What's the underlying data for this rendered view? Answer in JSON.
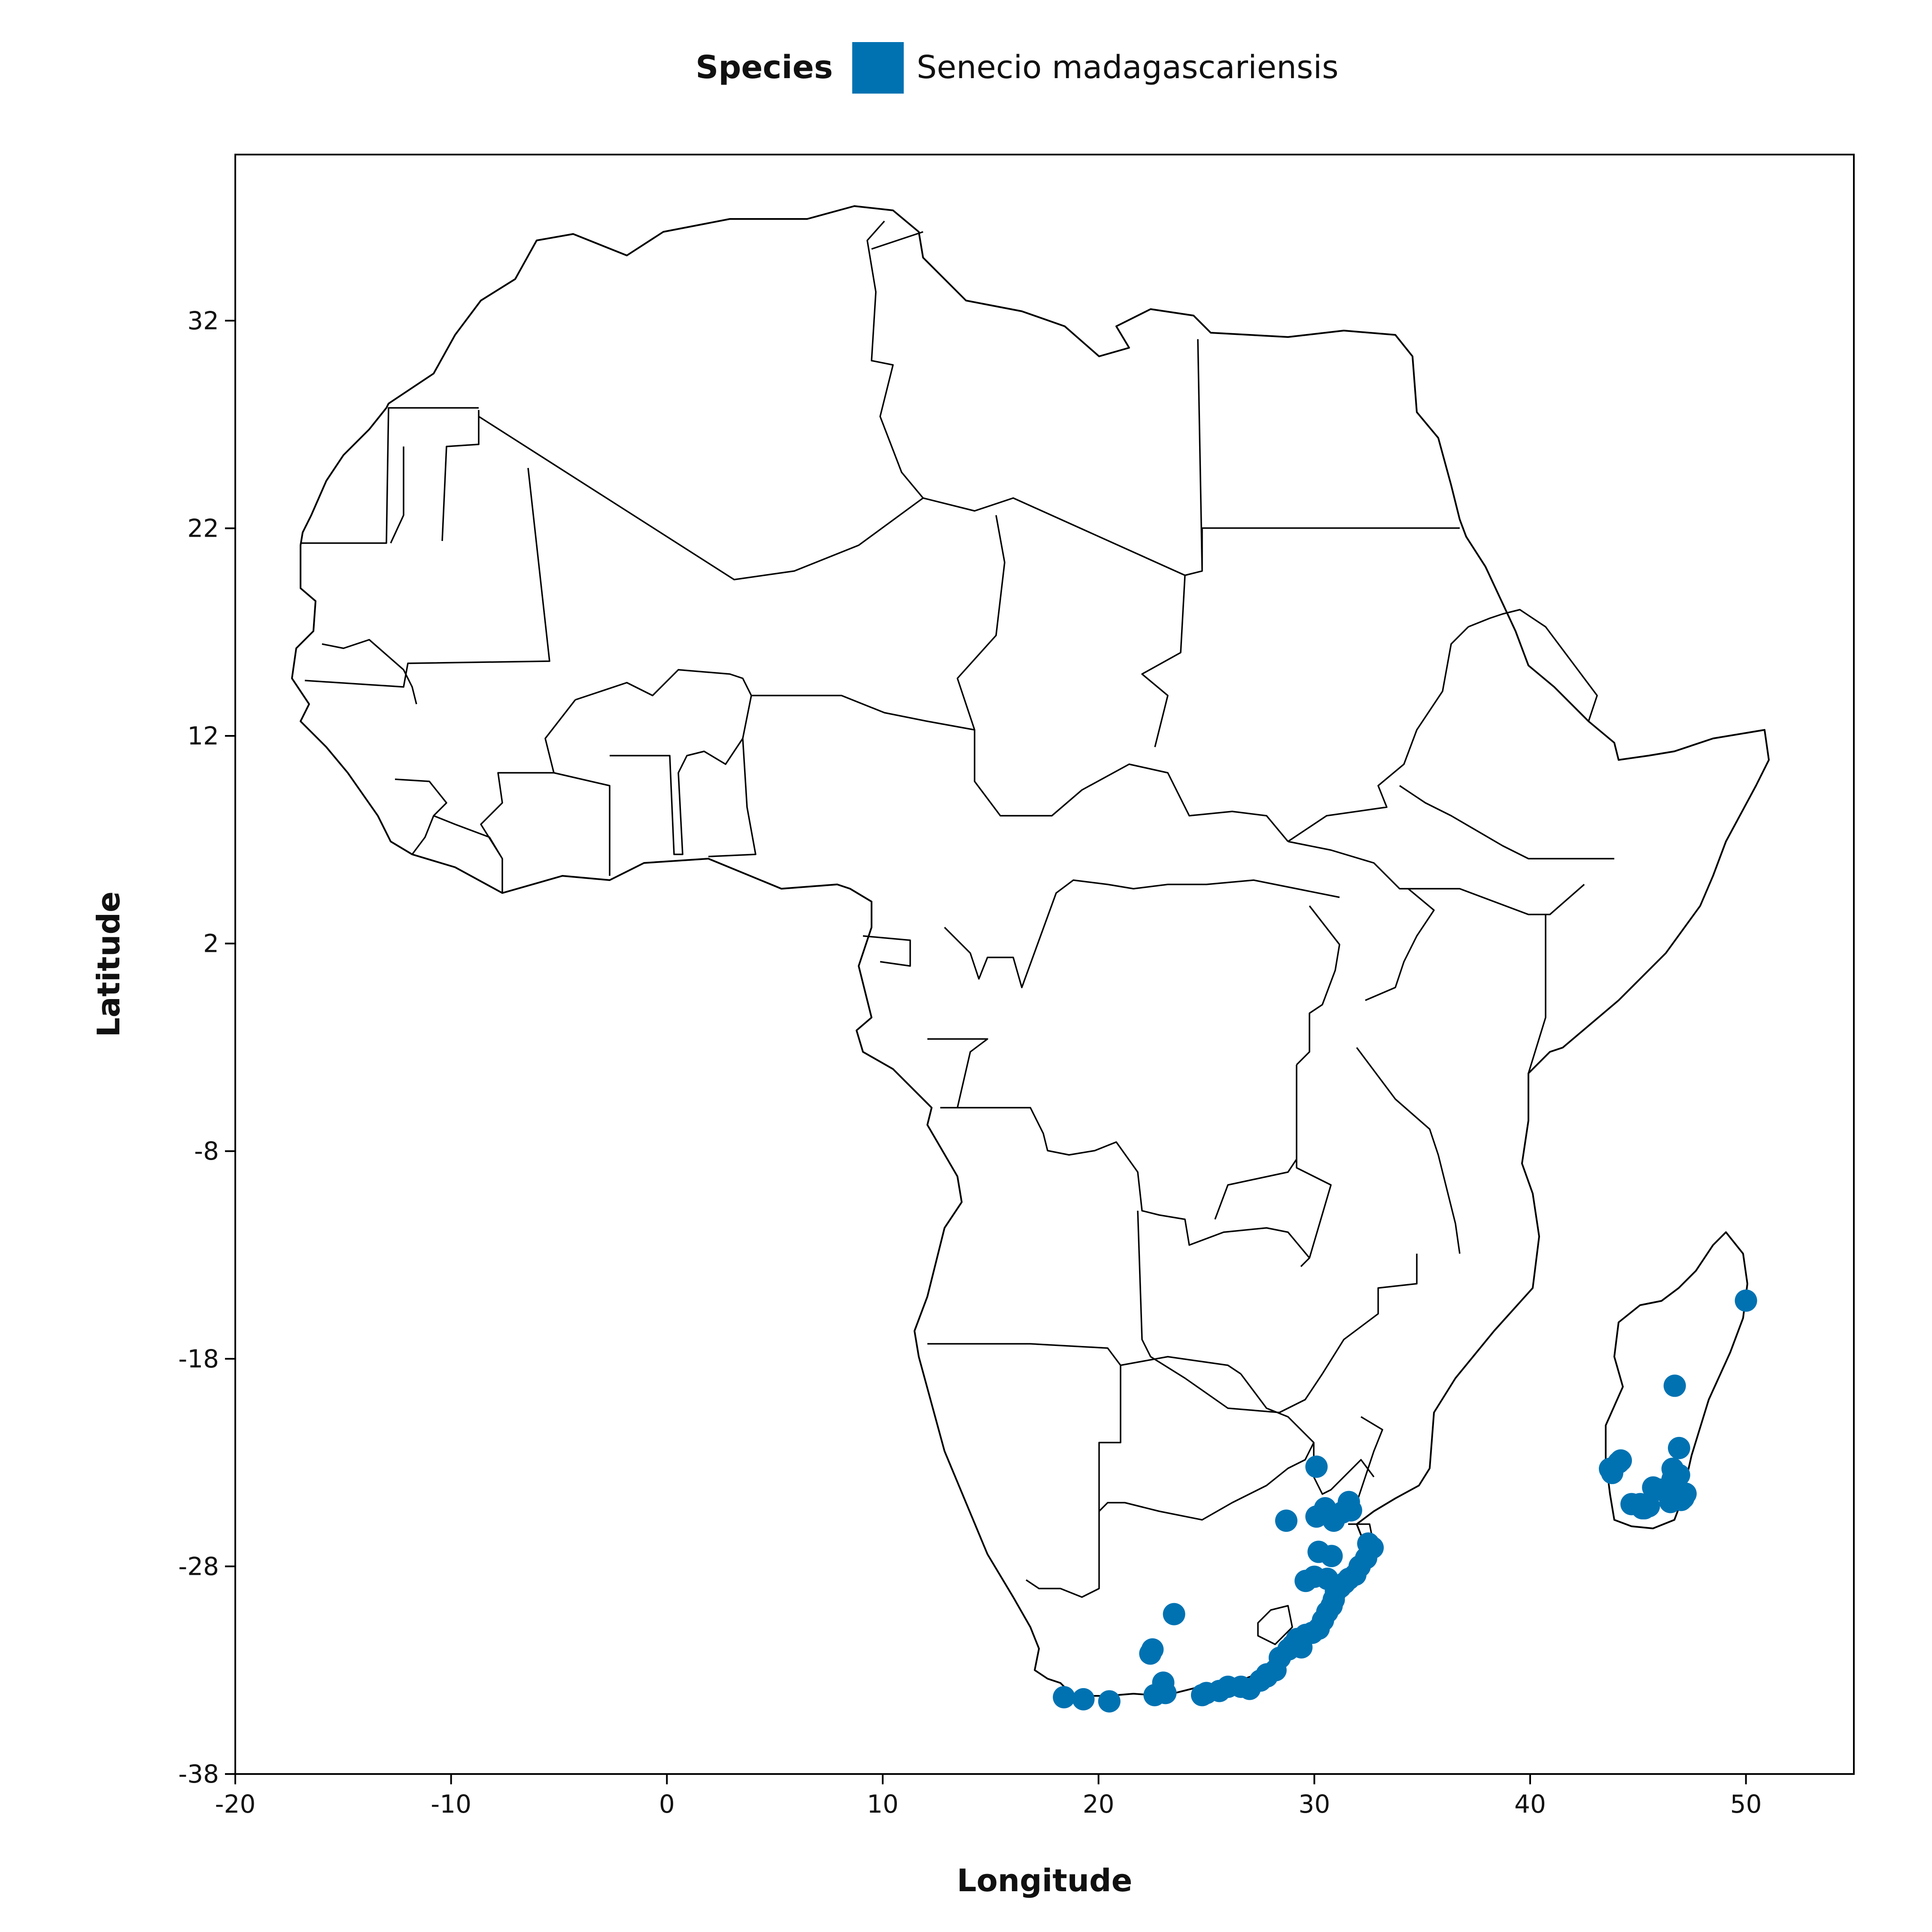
{
  "chart_data": {
    "type": "scatter",
    "xlabel": "Longitude",
    "ylabel": "Latitude",
    "xlim": [
      -20,
      55
    ],
    "ylim": [
      -38,
      40
    ],
    "xticks": [
      -20,
      -10,
      0,
      10,
      20,
      30,
      40,
      50
    ],
    "yticks": [
      -38,
      -28,
      -18,
      -8,
      2,
      12,
      22,
      32
    ],
    "grid": false,
    "basemap": "Africa and Madagascar country borders",
    "legend": {
      "title": "Species",
      "placement": "top-center"
    },
    "series": [
      {
        "name": "Senecio madagascariensis",
        "color": "#0072b2",
        "points": [
          [
            18.4,
            -34.3
          ],
          [
            19.3,
            -34.4
          ],
          [
            20.5,
            -34.5
          ],
          [
            22.5,
            -32.0
          ],
          [
            22.4,
            -32.2
          ],
          [
            22.6,
            -34.2
          ],
          [
            23.1,
            -34.1
          ],
          [
            23.0,
            -33.6
          ],
          [
            23.5,
            -30.3
          ],
          [
            24.8,
            -34.2
          ],
          [
            25.0,
            -34.1
          ],
          [
            25.6,
            -34.0
          ],
          [
            26.0,
            -33.8
          ],
          [
            26.6,
            -33.8
          ],
          [
            27.0,
            -33.9
          ],
          [
            27.5,
            -33.5
          ],
          [
            27.8,
            -33.2
          ],
          [
            28.2,
            -33.0
          ],
          [
            28.4,
            -32.4
          ],
          [
            28.8,
            -32.0
          ],
          [
            29.0,
            -31.8
          ],
          [
            29.2,
            -31.5
          ],
          [
            29.6,
            -31.3
          ],
          [
            29.9,
            -31.2
          ],
          [
            30.2,
            -31.0
          ],
          [
            30.4,
            -30.6
          ],
          [
            30.6,
            -30.2
          ],
          [
            30.8,
            -29.9
          ],
          [
            30.9,
            -29.6
          ],
          [
            31.0,
            -29.2
          ],
          [
            31.2,
            -29.0
          ],
          [
            31.4,
            -28.8
          ],
          [
            31.6,
            -28.6
          ],
          [
            31.9,
            -28.4
          ],
          [
            32.1,
            -28.0
          ],
          [
            32.4,
            -27.6
          ],
          [
            32.7,
            -27.1
          ],
          [
            32.5,
            -26.9
          ],
          [
            29.6,
            -28.7
          ],
          [
            30.0,
            -28.5
          ],
          [
            30.6,
            -28.6
          ],
          [
            30.2,
            -27.3
          ],
          [
            30.8,
            -27.5
          ],
          [
            28.7,
            -25.8
          ],
          [
            30.1,
            -25.6
          ],
          [
            30.5,
            -25.2
          ],
          [
            30.9,
            -25.8
          ],
          [
            31.3,
            -25.4
          ],
          [
            31.6,
            -24.9
          ],
          [
            31.7,
            -25.3
          ],
          [
            30.1,
            -23.2
          ],
          [
            27.8,
            -33.3
          ],
          [
            29.4,
            -31.9
          ],
          [
            43.7,
            -23.3
          ],
          [
            43.8,
            -23.5
          ],
          [
            44.1,
            -23.0
          ],
          [
            44.2,
            -22.9
          ],
          [
            44.7,
            -25.0
          ],
          [
            45.1,
            -25.0
          ],
          [
            45.2,
            -25.2
          ],
          [
            45.5,
            -25.1
          ],
          [
            45.3,
            -25.2
          ],
          [
            45.7,
            -24.2
          ],
          [
            46.0,
            -24.3
          ],
          [
            46.5,
            -24.6
          ],
          [
            46.6,
            -23.8
          ],
          [
            46.6,
            -23.3
          ],
          [
            46.9,
            -23.6
          ],
          [
            46.8,
            -24.5
          ],
          [
            47.0,
            -24.8
          ],
          [
            47.1,
            -24.7
          ],
          [
            47.2,
            -24.5
          ],
          [
            46.9,
            -22.3
          ],
          [
            46.5,
            -24.9
          ],
          [
            46.7,
            -19.3
          ],
          [
            50.0,
            -15.2
          ]
        ]
      }
    ]
  }
}
